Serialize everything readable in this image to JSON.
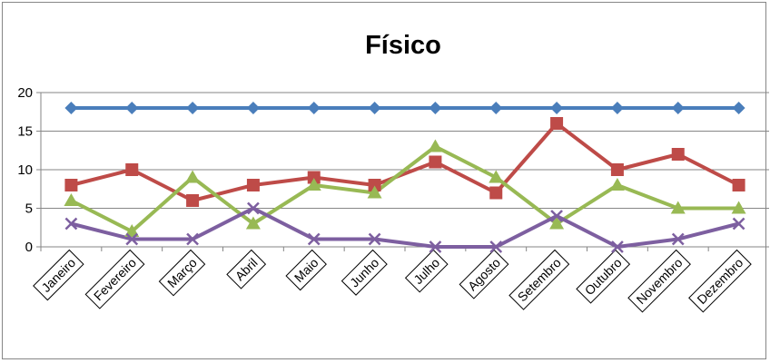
{
  "chart_data": {
    "type": "line",
    "title": "Físico",
    "xlabel": "",
    "ylabel": "",
    "ylim": [
      0,
      20
    ],
    "yticks": [
      "0",
      "5",
      "10",
      "15",
      "20"
    ],
    "grid": true,
    "legend": "none",
    "categories": [
      "Janeiro",
      "Fevereiro",
      "Março",
      "Abril",
      "Maio",
      "Junho",
      "Julho",
      "Agosto",
      "Setembro",
      "Outubro",
      "Novembro",
      "Dezembro"
    ],
    "series": [
      {
        "color": "#4a7ebb",
        "marker": "diamond",
        "values": [
          18,
          18,
          18,
          18,
          18,
          18,
          18,
          18,
          18,
          18,
          18,
          18
        ]
      },
      {
        "color": "#be4b48",
        "marker": "square",
        "values": [
          8,
          10,
          6,
          8,
          9,
          8,
          11,
          7,
          16,
          10,
          12,
          8
        ]
      },
      {
        "color": "#98b954",
        "marker": "triangle",
        "values": [
          6,
          2,
          9,
          3,
          8,
          7,
          13,
          9,
          3,
          8,
          5,
          5
        ]
      },
      {
        "color": "#7d5fa0",
        "marker": "x",
        "values": [
          3,
          1,
          1,
          5,
          1,
          1,
          0,
          0,
          4,
          0,
          1,
          3
        ]
      }
    ]
  }
}
